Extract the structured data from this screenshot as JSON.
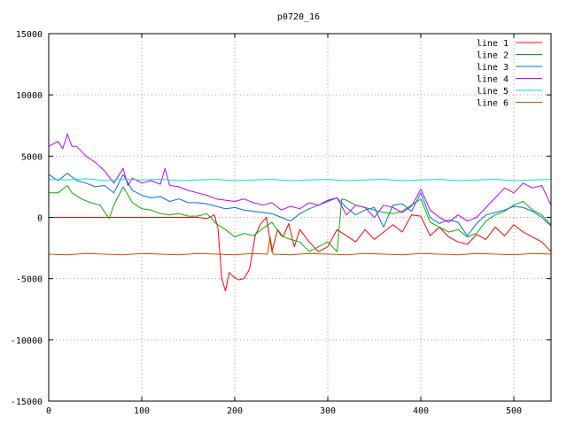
{
  "chart_data": {
    "type": "line",
    "title": "p0720_16",
    "xlabel": "",
    "ylabel": "",
    "xlim": [
      0,
      540
    ],
    "ylim": [
      -15000,
      15000
    ],
    "x_ticks": [
      0,
      100,
      200,
      300,
      400,
      500
    ],
    "y_ticks": [
      -15000,
      -10000,
      -5000,
      0,
      5000,
      10000,
      15000
    ],
    "grid": true,
    "legend_position": "top-right",
    "series": [
      {
        "name": "line 1",
        "color": "#ff0000",
        "x": [
          0,
          20,
          40,
          60,
          80,
          100,
          120,
          140,
          160,
          170,
          178,
          182,
          186,
          190,
          194,
          198,
          204,
          210,
          216,
          222,
          228,
          234,
          240,
          246,
          252,
          258,
          264,
          270,
          280,
          290,
          300,
          310,
          320,
          330,
          340,
          350,
          360,
          370,
          380,
          390,
          400,
          410,
          420,
          430,
          440,
          450,
          460,
          470,
          480,
          490,
          500,
          510,
          520,
          530,
          540
        ],
        "y": [
          0,
          0,
          0,
          0,
          0,
          0,
          0,
          0,
          0,
          -100,
          200,
          -900,
          -5000,
          -6000,
          -4500,
          -4800,
          -5100,
          -5000,
          -4200,
          -1500,
          -500,
          0,
          -2800,
          -1000,
          -1600,
          -500,
          -2400,
          -1000,
          -2000,
          -2800,
          -2400,
          -1000,
          -1500,
          -2000,
          -1000,
          -1800,
          -1200,
          -600,
          -1200,
          200,
          100,
          -1500,
          -800,
          -1600,
          -2000,
          -2200,
          -1400,
          -1800,
          -800,
          -1500,
          -600,
          -1200,
          -1600,
          -2000,
          -2800
        ]
      },
      {
        "name": "line 2",
        "color": "#00b000",
        "x": [
          0,
          10,
          20,
          25,
          35,
          45,
          55,
          65,
          70,
          80,
          90,
          100,
          110,
          120,
          130,
          140,
          150,
          160,
          170,
          180,
          190,
          200,
          210,
          220,
          230,
          240,
          250,
          260,
          270,
          280,
          290,
          300,
          310,
          315,
          320,
          330,
          340,
          350,
          360,
          370,
          380,
          390,
          400,
          410,
          420,
          430,
          440,
          450,
          460,
          470,
          480,
          490,
          500,
          510,
          520,
          530,
          540
        ],
        "y": [
          2000,
          2000,
          2600,
          2000,
          1500,
          1200,
          1000,
          -100,
          1000,
          2500,
          1200,
          700,
          600,
          300,
          200,
          300,
          100,
          100,
          300,
          -500,
          -1000,
          -1600,
          -1300,
          -1500,
          -900,
          -400,
          -1500,
          -1800,
          -2000,
          -2800,
          -2400,
          -2000,
          -2800,
          1500,
          1400,
          1000,
          800,
          600,
          400,
          300,
          500,
          1000,
          1500,
          -400,
          -800,
          -1200,
          -1000,
          -1600,
          -1300,
          -300,
          200,
          500,
          1000,
          1300,
          600,
          200,
          -600
        ]
      },
      {
        "name": "line 3",
        "color": "#0070e0",
        "x": [
          0,
          10,
          20,
          30,
          40,
          50,
          60,
          70,
          80,
          90,
          100,
          110,
          120,
          130,
          140,
          150,
          160,
          170,
          180,
          190,
          200,
          210,
          220,
          230,
          240,
          250,
          260,
          270,
          280,
          290,
          300,
          310,
          320,
          330,
          340,
          350,
          360,
          370,
          380,
          390,
          400,
          410,
          420,
          430,
          440,
          450,
          460,
          470,
          480,
          490,
          500,
          510,
          520,
          530,
          540
        ],
        "y": [
          3500,
          3000,
          3600,
          3000,
          2800,
          2500,
          2600,
          2000,
          3500,
          2200,
          1800,
          1600,
          1700,
          1300,
          1500,
          1200,
          1200,
          1100,
          900,
          700,
          800,
          600,
          500,
          400,
          300,
          0,
          -300,
          300,
          700,
          1000,
          1300,
          1600,
          800,
          200,
          600,
          800,
          -800,
          1000,
          1100,
          500,
          2000,
          0,
          -500,
          -200,
          -400,
          -1500,
          -500,
          200,
          400,
          600,
          900,
          800,
          500,
          0,
          -700
        ]
      },
      {
        "name": "line 4",
        "color": "#c000ff",
        "x": [
          0,
          10,
          15,
          20,
          25,
          30,
          40,
          50,
          60,
          70,
          80,
          85,
          90,
          100,
          110,
          120,
          125,
          130,
          140,
          150,
          160,
          170,
          180,
          190,
          200,
          210,
          220,
          230,
          240,
          250,
          260,
          270,
          280,
          290,
          300,
          310,
          320,
          330,
          340,
          350,
          360,
          370,
          380,
          390,
          400,
          410,
          420,
          430,
          440,
          450,
          460,
          470,
          480,
          490,
          500,
          510,
          520,
          530,
          540
        ],
        "y": [
          5800,
          6200,
          5600,
          6800,
          5800,
          5800,
          5000,
          4500,
          3800,
          2800,
          4000,
          2600,
          3200,
          2800,
          3000,
          2700,
          4000,
          2600,
          2500,
          2200,
          2000,
          1800,
          1500,
          1400,
          1300,
          1500,
          1200,
          1000,
          1200,
          600,
          900,
          700,
          1200,
          1000,
          1400,
          1600,
          200,
          1000,
          800,
          0,
          1000,
          800,
          400,
          900,
          2300,
          600,
          0,
          -400,
          200,
          -300,
          0,
          800,
          1600,
          2400,
          2000,
          2800,
          2400,
          2600,
          1000
        ]
      },
      {
        "name": "line 5",
        "color": "#00e0e0",
        "x": [
          0,
          20,
          40,
          60,
          80,
          100,
          120,
          140,
          160,
          180,
          200,
          220,
          240,
          260,
          280,
          300,
          320,
          340,
          360,
          380,
          400,
          420,
          440,
          460,
          480,
          500,
          520,
          540
        ],
        "y": [
          3100,
          3050,
          3150,
          3000,
          3100,
          3050,
          3100,
          3000,
          3050,
          3100,
          3000,
          3050,
          3100,
          3000,
          3050,
          3100,
          3000,
          3050,
          3100,
          3000,
          3050,
          3100,
          3000,
          3050,
          3100,
          3000,
          3050,
          3100
        ]
      },
      {
        "name": "line 6",
        "color": "#d05000",
        "x": [
          0,
          20,
          40,
          60,
          80,
          100,
          120,
          140,
          160,
          180,
          200,
          220,
          235,
          238,
          241,
          260,
          280,
          300,
          320,
          340,
          360,
          380,
          400,
          420,
          440,
          460,
          480,
          500,
          520,
          540
        ],
        "y": [
          -3000,
          -3050,
          -2950,
          -3000,
          -3050,
          -2950,
          -3000,
          -3050,
          -2950,
          -3000,
          -3050,
          -2950,
          -3000,
          -1600,
          -3000,
          -3050,
          -2950,
          -3000,
          -3050,
          -2950,
          -3000,
          -3050,
          -2950,
          -3000,
          -3050,
          -2950,
          -3000,
          -3050,
          -2950,
          -3000
        ]
      }
    ]
  }
}
